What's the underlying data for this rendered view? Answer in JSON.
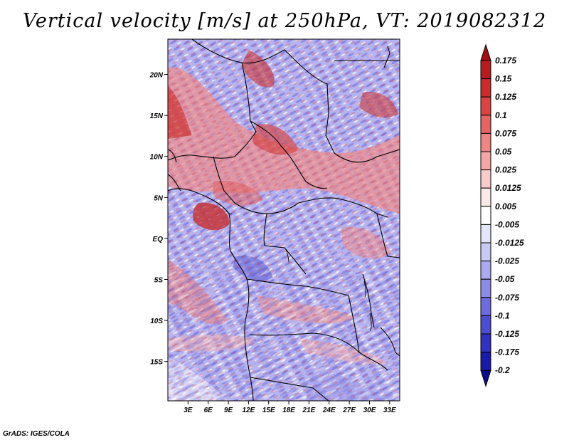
{
  "title": "Vertical velocity [m/s] at 250hPa, VT: 2019082312",
  "credit": "GrADS: IGES/COLA",
  "map": {
    "lat_labels": [
      "20N",
      "15N",
      "10N",
      "5N",
      "EQ",
      "5S",
      "10S",
      "15S"
    ],
    "lon_labels": [
      "3E",
      "6E",
      "9E",
      "12E",
      "15E",
      "18E",
      "21E",
      "24E",
      "27E",
      "30E",
      "33E"
    ],
    "lon_range": [
      0,
      34.5
    ],
    "lat_range": [
      -19.8,
      24.3
    ]
  },
  "colorbar": {
    "labels": [
      "0.175",
      "0.15",
      "0.125",
      "0.1",
      "0.075",
      "0.05",
      "0.025",
      "0.0125",
      "0.005",
      "-0.005",
      "-0.0125",
      "-0.025",
      "-0.05",
      "-0.075",
      "-0.1",
      "-0.125",
      "-0.175",
      "-0.2"
    ],
    "colors": [
      "#a01010",
      "#b81c1c",
      "#cc2b2b",
      "#dc4444",
      "#e66464",
      "#ee8484",
      "#f4a6a6",
      "#f9cccc",
      "#fde8e8",
      "#ffffff",
      "#e4e4fc",
      "#c9c9f6",
      "#aaaaf0",
      "#8c8ce8",
      "#6c6cde",
      "#4d4dd2",
      "#3030c2",
      "#1a1aa8",
      "#0c0c8c"
    ]
  }
}
